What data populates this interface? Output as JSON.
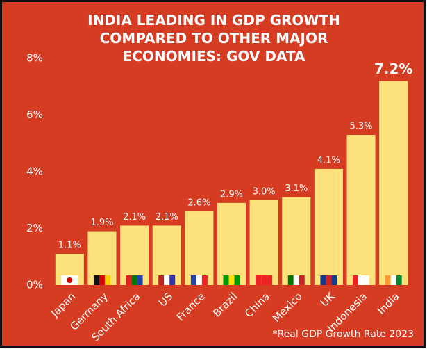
{
  "chart_data": {
    "type": "bar",
    "title": "INDIA LEADING IN GDP GROWTH COMPARED TO OTHER MAJOR ECONOMIES: GOV DATA",
    "categories": [
      "Japan",
      "Germany",
      "South Africa",
      "US",
      "France",
      "Brazil",
      "China",
      "Mexico",
      "UK",
      "Indonesia",
      "India"
    ],
    "values": [
      1.1,
      1.9,
      2.1,
      2.1,
      2.6,
      2.9,
      3.0,
      3.1,
      4.1,
      5.3,
      7.2
    ],
    "value_labels": [
      "1.1%",
      "1.9%",
      "2.1%",
      "2.1%",
      "2.6%",
      "2.9%",
      "3.0%",
      "3.1%",
      "4.1%",
      "5.3%",
      "7.2%"
    ],
    "color": "#fde27c",
    "ylim": [
      0,
      8
    ],
    "yticks": [
      {
        "value": 0,
        "label": "0%"
      },
      {
        "value": 2,
        "label": "2%"
      },
      {
        "value": 4,
        "label": "4%"
      },
      {
        "value": 6,
        "label": "6%"
      },
      {
        "value": 8,
        "label": "8%"
      }
    ],
    "grid": false,
    "footnote": "*Real GDP Growth Rate 2023"
  }
}
